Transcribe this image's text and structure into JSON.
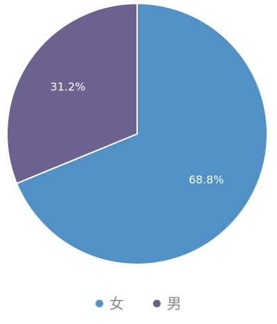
{
  "chart_data": {
    "type": "pie",
    "title": "",
    "categories": [
      "女",
      "男"
    ],
    "values": [
      68.8,
      31.2
    ],
    "labels": [
      "68.8%",
      "31.2%"
    ],
    "colors": [
      "#5191C5",
      "#6B6290"
    ],
    "legend_position": "bottom"
  }
}
